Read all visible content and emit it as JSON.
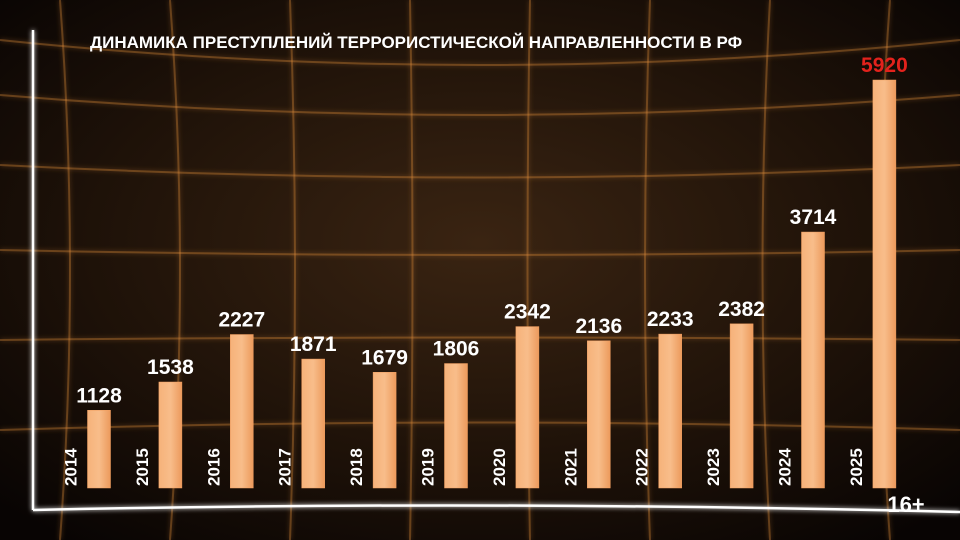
{
  "chart_data": {
    "type": "bar",
    "title": "ДИНАМИКА ПРЕСТУПЛЕНИЙ ТЕРРОРИСТИЧЕСКОЙ НАПРАВЛЕННОСТИ В РФ",
    "categories": [
      "2014",
      "2015",
      "2016",
      "2017",
      "2018",
      "2019",
      "2020",
      "2021",
      "2022",
      "2023",
      "2024",
      "2025"
    ],
    "values": [
      1128,
      1538,
      2227,
      1871,
      1679,
      1806,
      2342,
      2136,
      2233,
      2382,
      3714,
      5920
    ],
    "color": "#f4a163",
    "label_colors": [
      "#ffffff",
      "#ffffff",
      "#ffffff",
      "#ffffff",
      "#ffffff",
      "#ffffff",
      "#ffffff",
      "#ffffff",
      "#ffffff",
      "#ffffff",
      "#ffffff",
      "#e3221c"
    ]
  },
  "age_rating": "16+"
}
